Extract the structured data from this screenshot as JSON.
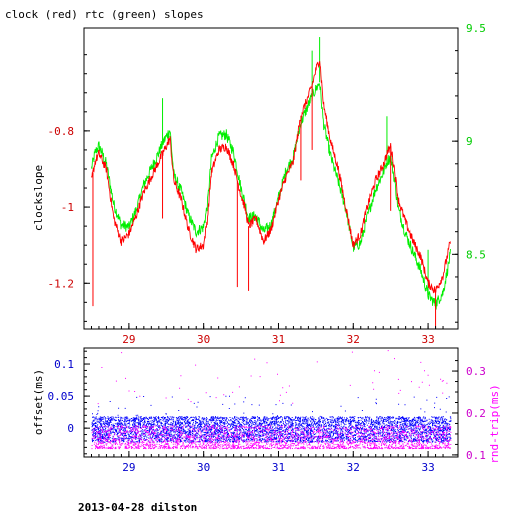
{
  "figure": {
    "title": "clock (red) rtc (green) slopes",
    "footer": "2013-04-28 dilston"
  },
  "colors": {
    "clock": "#ff0000",
    "rtc": "#00ee00",
    "offset": "#0000ff",
    "round_trip": "#ff00ff",
    "axis": "#000000",
    "left_tick_top": "#cc0000",
    "right_tick_top": "#00cc00",
    "left_tick_bottom": "#0000cc",
    "right_tick_bottom": "#cc00cc"
  },
  "chart_data": [
    {
      "type": "line",
      "title": "clock (red) rtc (green) slopes",
      "xlabel": "",
      "ylabel": "clockslope",
      "y2label": "",
      "xlim": [
        28.4,
        33.4
      ],
      "ylim": [
        -1.32,
        -0.53
      ],
      "y2lim": [
        8.17,
        9.5
      ],
      "xticks": [
        29,
        30,
        31,
        32,
        33
      ],
      "yticks": [
        -1.2,
        -1,
        -0.8
      ],
      "y2ticks": [
        8.5,
        9,
        9.5
      ],
      "grid": false,
      "series": [
        {
          "name": "clock",
          "axis": "left",
          "x": [
            28.5,
            28.55,
            28.6,
            28.7,
            28.8,
            28.9,
            29.0,
            29.1,
            29.2,
            29.3,
            29.4,
            29.45,
            29.5,
            29.55,
            29.6,
            29.7,
            29.8,
            29.9,
            30.0,
            30.05,
            30.1,
            30.2,
            30.3,
            30.4,
            30.5,
            30.55,
            30.6,
            30.7,
            30.8,
            30.9,
            31.0,
            31.1,
            31.2,
            31.3,
            31.4,
            31.45,
            31.5,
            31.55,
            31.6,
            31.7,
            31.8,
            31.9,
            32.0,
            32.1,
            32.2,
            32.3,
            32.4,
            32.45,
            32.5,
            32.55,
            32.6,
            32.7,
            32.8,
            32.9,
            33.0,
            33.1,
            33.2,
            33.3
          ],
          "values": [
            -0.93,
            -0.88,
            -0.86,
            -0.9,
            -1.03,
            -1.09,
            -1.07,
            -1.02,
            -0.96,
            -0.92,
            -0.88,
            -0.86,
            -0.84,
            -0.82,
            -0.93,
            -0.98,
            -1.06,
            -1.11,
            -1.1,
            -1.03,
            -0.91,
            -0.85,
            -0.84,
            -0.89,
            -0.97,
            -1.0,
            -1.05,
            -1.03,
            -1.09,
            -1.06,
            -0.98,
            -0.92,
            -0.88,
            -0.76,
            -0.71,
            -0.68,
            -0.64,
            -0.61,
            -0.73,
            -0.83,
            -0.9,
            -1.0,
            -1.1,
            -1.07,
            -0.99,
            -0.93,
            -0.89,
            -0.86,
            -0.84,
            -0.9,
            -0.98,
            -1.04,
            -1.09,
            -1.13,
            -1.2,
            -1.22,
            -1.18,
            -1.09
          ]
        },
        {
          "name": "rtc",
          "axis": "right",
          "x": [
            28.5,
            28.55,
            28.6,
            28.7,
            28.8,
            28.9,
            29.0,
            29.1,
            29.2,
            29.3,
            29.4,
            29.45,
            29.5,
            29.55,
            29.6,
            29.7,
            29.8,
            29.9,
            30.0,
            30.05,
            30.1,
            30.2,
            30.3,
            30.4,
            30.5,
            30.55,
            30.6,
            30.7,
            30.8,
            30.9,
            31.0,
            31.1,
            31.2,
            31.3,
            31.4,
            31.45,
            31.5,
            31.55,
            31.6,
            31.7,
            31.8,
            31.9,
            32.0,
            32.1,
            32.2,
            32.3,
            32.4,
            32.45,
            32.5,
            32.55,
            32.6,
            32.7,
            32.8,
            32.9,
            33.0,
            33.1,
            33.2,
            33.3
          ],
          "values": [
            8.88,
            8.95,
            8.98,
            8.9,
            8.72,
            8.63,
            8.62,
            8.7,
            8.81,
            8.88,
            8.95,
            8.99,
            9.02,
            9.05,
            8.85,
            8.78,
            8.67,
            8.6,
            8.62,
            8.72,
            8.92,
            9.02,
            9.03,
            8.95,
            8.79,
            8.73,
            8.66,
            8.67,
            8.6,
            8.63,
            8.75,
            8.87,
            8.93,
            9.08,
            9.16,
            9.2,
            9.23,
            9.26,
            9.08,
            8.93,
            8.82,
            8.7,
            8.53,
            8.55,
            8.68,
            8.79,
            8.86,
            8.91,
            8.93,
            8.83,
            8.7,
            8.59,
            8.51,
            8.43,
            8.32,
            8.28,
            8.33,
            8.5
          ]
        }
      ]
    },
    {
      "type": "scatter",
      "title": "",
      "xlabel": "",
      "ylabel": "offset(ms)",
      "y2label": "rnd-trip(ms)",
      "xlim": [
        28.4,
        33.4
      ],
      "ylim": [
        -0.045,
        0.125
      ],
      "y2lim": [
        0.095,
        0.355
      ],
      "xticks": [
        29,
        30,
        31,
        32,
        33
      ],
      "yticks": [
        0,
        0.05,
        0.1
      ],
      "ytick_labels": [
        "0",
        "0.05",
        "0.1"
      ],
      "y2ticks": [
        0.1,
        0.2,
        0.3
      ],
      "grid": false,
      "x_range": [
        28.5,
        33.3
      ],
      "series": [
        {
          "name": "offset",
          "axis": "left",
          "band": [
            -0.022,
            0.018
          ],
          "outliers_max": 0.12
        },
        {
          "name": "round_trip",
          "axis": "right",
          "band": [
            0.115,
            0.17
          ],
          "outliers_max": 0.35
        }
      ]
    }
  ]
}
